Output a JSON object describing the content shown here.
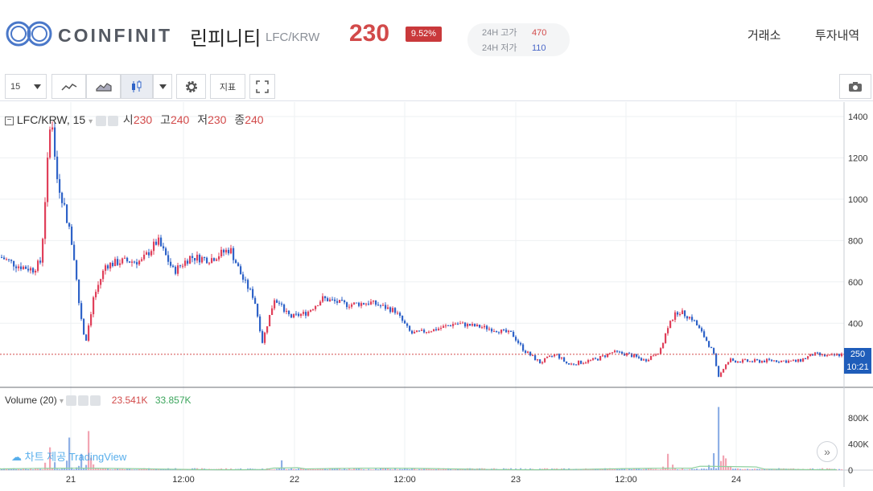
{
  "header": {
    "brand": "COINFINIT",
    "coin_name": "린피니티",
    "pair": "LFC/KRW",
    "price": "230",
    "change": "9.52%",
    "high_label": "24H 고가",
    "high_value": "470",
    "low_label": "24H 저가",
    "low_value": "110",
    "nav": [
      "거래소",
      "투자내역"
    ]
  },
  "toolbar": {
    "interval": "15",
    "indicators_label": "지표"
  },
  "legend": {
    "symbol": "LFC/KRW, 15",
    "open_label": "시",
    "open": "230",
    "high_label": "고",
    "high": "240",
    "low_label": "저",
    "low": "230",
    "close_label": "종",
    "close": "240"
  },
  "volume_legend": {
    "label": "Volume (20)",
    "value1": "23.541K",
    "value2": "33.857K"
  },
  "last_price": {
    "value": "250",
    "time": "10:21"
  },
  "watermark": "차트 제공 TradingView",
  "colors": {
    "up": "#e0405a",
    "down": "#2f63c8",
    "accent": "#d24a4a"
  },
  "chart_data": {
    "type": "candlestick",
    "price_axis": {
      "ticks": [
        400,
        600,
        800,
        1000,
        1200,
        1400
      ],
      "ylim": [
        90,
        1470
      ]
    },
    "volume_axis": {
      "ticks": [
        "0",
        "400K",
        "800K"
      ],
      "ylim": [
        0,
        1000
      ]
    },
    "time_axis": {
      "labels": [
        "21",
        "12:00",
        "22",
        "12:00",
        "23",
        "12:00",
        "24"
      ]
    },
    "close_series": [
      {
        "t": 0,
        "y": 720
      },
      {
        "t": 20,
        "y": 680
      },
      {
        "t": 40,
        "y": 660
      },
      {
        "t": 50,
        "y": 700
      },
      {
        "t": 55,
        "y": 1000
      },
      {
        "t": 62,
        "y": 1410
      },
      {
        "t": 70,
        "y": 1100
      },
      {
        "t": 80,
        "y": 950
      },
      {
        "t": 90,
        "y": 750
      },
      {
        "t": 97,
        "y": 500
      },
      {
        "t": 105,
        "y": 300
      },
      {
        "t": 115,
        "y": 520
      },
      {
        "t": 130,
        "y": 680
      },
      {
        "t": 150,
        "y": 700
      },
      {
        "t": 175,
        "y": 700
      },
      {
        "t": 195,
        "y": 800
      },
      {
        "t": 215,
        "y": 650
      },
      {
        "t": 235,
        "y": 720
      },
      {
        "t": 260,
        "y": 710
      },
      {
        "t": 285,
        "y": 760
      },
      {
        "t": 300,
        "y": 620
      },
      {
        "t": 315,
        "y": 520
      },
      {
        "t": 325,
        "y": 310
      },
      {
        "t": 340,
        "y": 520
      },
      {
        "t": 360,
        "y": 430
      },
      {
        "t": 380,
        "y": 450
      },
      {
        "t": 400,
        "y": 520
      },
      {
        "t": 430,
        "y": 490
      },
      {
        "t": 460,
        "y": 500
      },
      {
        "t": 490,
        "y": 460
      },
      {
        "t": 510,
        "y": 350
      },
      {
        "t": 540,
        "y": 370
      },
      {
        "t": 565,
        "y": 400
      },
      {
        "t": 600,
        "y": 380
      },
      {
        "t": 635,
        "y": 350
      },
      {
        "t": 650,
        "y": 270
      },
      {
        "t": 670,
        "y": 210
      },
      {
        "t": 690,
        "y": 250
      },
      {
        "t": 705,
        "y": 200
      },
      {
        "t": 740,
        "y": 225
      },
      {
        "t": 760,
        "y": 260
      },
      {
        "t": 780,
        "y": 250
      },
      {
        "t": 800,
        "y": 220
      },
      {
        "t": 820,
        "y": 270
      },
      {
        "t": 830,
        "y": 400
      },
      {
        "t": 842,
        "y": 460
      },
      {
        "t": 860,
        "y": 420
      },
      {
        "t": 875,
        "y": 330
      },
      {
        "t": 885,
        "y": 260
      },
      {
        "t": 892,
        "y": 150
      },
      {
        "t": 905,
        "y": 220
      },
      {
        "t": 930,
        "y": 215
      },
      {
        "t": 960,
        "y": 220
      },
      {
        "t": 990,
        "y": 215
      },
      {
        "t": 1010,
        "y": 250
      },
      {
        "t": 1030,
        "y": 240
      },
      {
        "t": 1045,
        "y": 250
      }
    ],
    "volume_spikes": [
      {
        "t": 60,
        "v": 350
      },
      {
        "t": 85,
        "v": 500
      },
      {
        "t": 100,
        "v": 250
      },
      {
        "t": 110,
        "v": 600
      },
      {
        "t": 350,
        "v": 150
      },
      {
        "t": 830,
        "v": 250
      },
      {
        "t": 886,
        "v": 260
      },
      {
        "t": 893,
        "v": 970
      },
      {
        "t": 900,
        "v": 180
      }
    ]
  }
}
